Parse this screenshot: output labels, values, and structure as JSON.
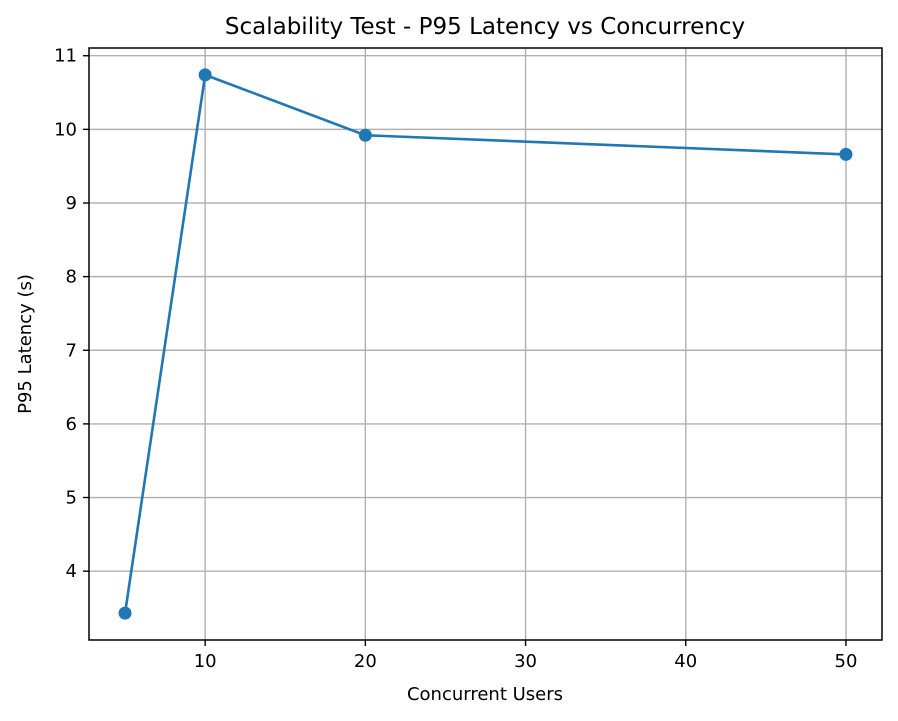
{
  "chart_data": {
    "type": "line",
    "title": "Scalability Test - P95 Latency vs Concurrency",
    "xlabel": "Concurrent Users",
    "ylabel": "P95 Latency (s)",
    "x": [
      5,
      10,
      20,
      50
    ],
    "series": [
      {
        "values": [
          3.43,
          10.74,
          9.92,
          9.66
        ],
        "color": "#1f77b4"
      }
    ],
    "xlim": [
      2.75,
      52.25
    ],
    "ylim": [
      3.065,
      11.105
    ],
    "xticks": [
      10,
      20,
      30,
      40,
      50
    ],
    "yticks": [
      4,
      5,
      6,
      7,
      8,
      9,
      10,
      11
    ],
    "grid": true,
    "marker": "circle"
  }
}
